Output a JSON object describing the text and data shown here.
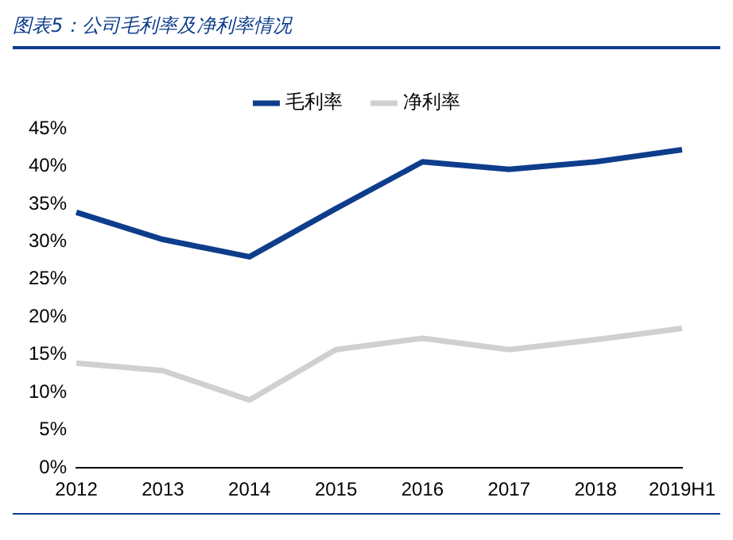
{
  "chart_data": {
    "type": "line",
    "title": "图表5：公司毛利率及净利率情况",
    "categories": [
      "2012",
      "2013",
      "2014",
      "2015",
      "2016",
      "2017",
      "2018",
      "2019H1"
    ],
    "series": [
      {
        "name": "毛利率",
        "color": "#0e3d8c",
        "values": [
          33.9,
          30.3,
          28.0,
          34.4,
          40.6,
          39.6,
          40.6,
          42.2
        ]
      },
      {
        "name": "净利率",
        "color": "#d0d0d0",
        "values": [
          13.9,
          12.9,
          9.0,
          15.7,
          17.2,
          15.7,
          17.0,
          18.5
        ]
      }
    ],
    "ylim": [
      0,
      45
    ],
    "yticks": [
      {
        "value": 0,
        "label": "0%"
      },
      {
        "value": 5,
        "label": "5%"
      },
      {
        "value": 10,
        "label": "10%"
      },
      {
        "value": 15,
        "label": "15%"
      },
      {
        "value": 20,
        "label": "20%"
      },
      {
        "value": 25,
        "label": "25%"
      },
      {
        "value": 30,
        "label": "30%"
      },
      {
        "value": 35,
        "label": "35%"
      },
      {
        "value": 40,
        "label": "40%"
      },
      {
        "value": 45,
        "label": "45%"
      }
    ],
    "grid": false,
    "legend": "top",
    "marker": "none",
    "line_style": "solid"
  }
}
